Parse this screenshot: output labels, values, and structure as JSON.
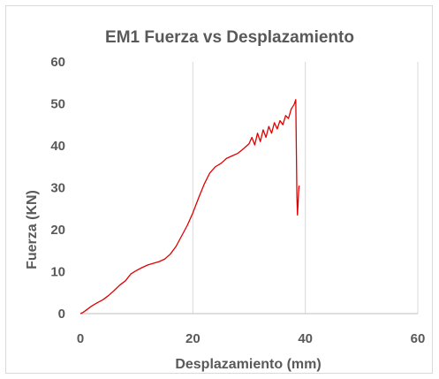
{
  "chart_data": {
    "type": "line",
    "title": "EM1 Fuerza vs Desplazamiento",
    "xlabel": "Desplazamiento (mm)",
    "ylabel": "Fuerza  (KN)",
    "xlim": [
      0,
      60
    ],
    "ylim": [
      0,
      60
    ],
    "xticks": [
      0,
      20,
      40,
      60
    ],
    "yticks": [
      0,
      10,
      20,
      30,
      40,
      50,
      60
    ],
    "grid": {
      "vertical": true,
      "horizontal": false
    },
    "legend": "none",
    "series": [
      {
        "color": "#e00000",
        "x": [
          0,
          0.5,
          1,
          2,
          3,
          4,
          5,
          6,
          7,
          8,
          9,
          10,
          11,
          12,
          13,
          14,
          15,
          16,
          17,
          18,
          19,
          20,
          21,
          22,
          23,
          24,
          25,
          26,
          27,
          28,
          29,
          30,
          30.5,
          31,
          31.5,
          32,
          32.5,
          33,
          33.5,
          34,
          34.5,
          35,
          35.5,
          36,
          36.5,
          37,
          37.5,
          38,
          38.3,
          38.5,
          38.6,
          38.7,
          38.8,
          38.9
        ],
        "y": [
          0,
          0.3,
          0.8,
          1.8,
          2.6,
          3.3,
          4.3,
          5.5,
          6.8,
          7.8,
          9.5,
          10.3,
          11,
          11.6,
          12,
          12.4,
          13,
          14.2,
          16,
          18.5,
          21,
          24,
          27.5,
          30.8,
          33.5,
          35,
          35.8,
          37,
          37.6,
          38.2,
          39.3,
          40.5,
          42,
          40.2,
          43,
          41,
          43.8,
          42,
          44.6,
          43,
          45.5,
          44,
          46,
          45,
          47.2,
          46.5,
          48.8,
          49.8,
          51,
          28,
          23.5,
          26,
          29,
          30.5
        ]
      }
    ]
  }
}
